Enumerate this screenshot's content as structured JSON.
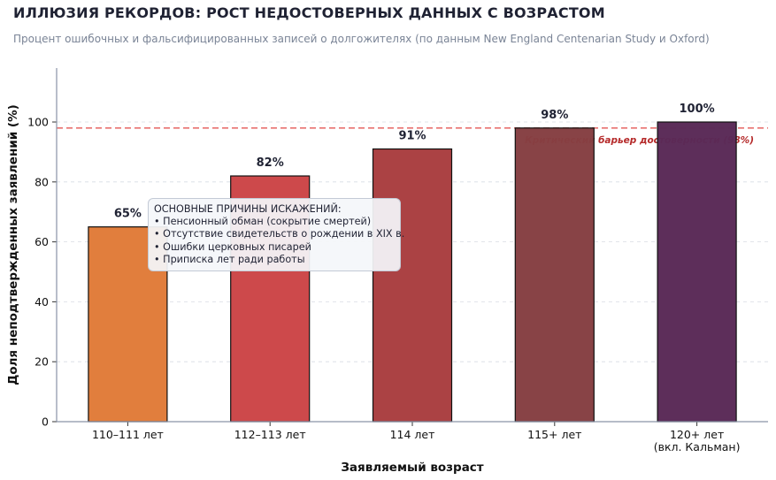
{
  "title": "ИЛЛЮЗИЯ РЕКОРДОВ: РОСТ НЕДОСТОВЕРНЫХ ДАННЫХ С ВОЗРАСТОМ",
  "subtitle": "Процент ошибочных и фальсифицированных записей о долгожителях (по данным New England Centenarian Study и Oxford)",
  "annotation": {
    "heading": "ОСНОВНЫЕ ПРИЧИНЫ ИСКАЖЕНИЙ:",
    "items": [
      "• Пенсионный обман (сокрытие смертей)",
      "• Отсутствие свидетельств о рождении в XIX в.",
      "• Ошибки церковных писарей",
      "• Приписка лет ради работы"
    ]
  },
  "chart_data": {
    "type": "bar",
    "title": "ИЛЛЮЗИЯ РЕКОРДОВ: РОСТ НЕДОСТОВЕРНЫХ ДАННЫХ С ВОЗРАСТОМ",
    "subtitle": "Процент ошибочных и фальсифицированных записей о долгожителях (по данным New England Centenarian Study и Oxford)",
    "xlabel": "Заявляемый возраст",
    "ylabel": "Доля неподтвержденных заявлений (%)",
    "categories": [
      [
        "110–111 лет"
      ],
      [
        "112–113 лет"
      ],
      [
        "114 лет"
      ],
      [
        "115+ лет"
      ],
      [
        "120+ лет",
        "(вкл. Кальман)"
      ]
    ],
    "values": [
      65,
      82,
      91,
      98,
      100
    ],
    "data_labels": [
      "65%",
      "82%",
      "91%",
      "98%",
      "100%"
    ],
    "colors": [
      "#e07b39",
      "#cc4547",
      "#a93e40",
      "#863f42",
      "#5a2a57"
    ],
    "ylim": [
      0,
      118
    ],
    "yticks": [
      0,
      20,
      40,
      60,
      80,
      100
    ],
    "grid": true,
    "reference_line": {
      "value": 98,
      "label": "Критический барьер достоверности (98%)",
      "color": "#e8716f"
    }
  }
}
